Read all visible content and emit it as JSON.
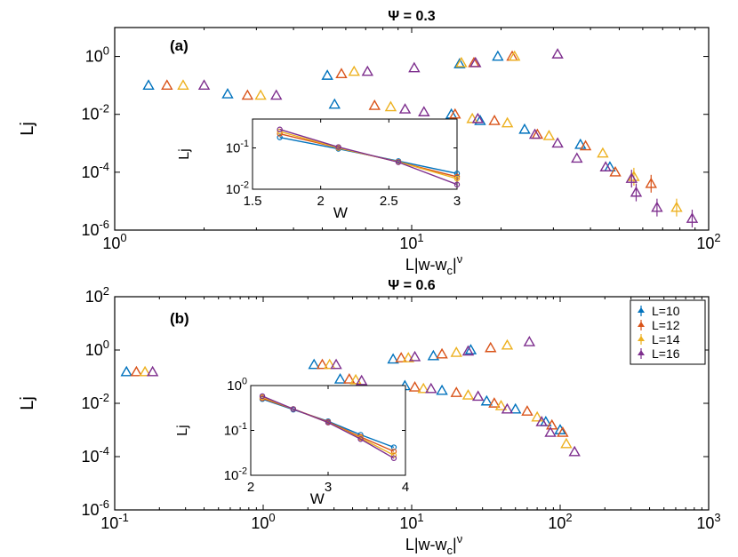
{
  "colors": {
    "L10": "#0072BD",
    "L12": "#D95319",
    "L14": "#EDB120",
    "L16": "#7E2F8E",
    "axis": "#000000",
    "background": "#ffffff"
  },
  "chart_data": [
    {
      "id": "a",
      "type": "scatter",
      "title": "Ψ = 0.3",
      "panel_label": "(a)",
      "xlabel": "L|w-w_c|^ν",
      "xlabel_parts": {
        "main": "L|w-w",
        "sub": "c",
        "tail": "|",
        "sup": "ν"
      },
      "ylabel": "Lj",
      "xscale": "log",
      "yscale": "log",
      "xlim": [
        1,
        100
      ],
      "ylim": [
        1e-06,
        10
      ],
      "xticks": [
        {
          "v": 1,
          "b": "10",
          "e": "0"
        },
        {
          "v": 10,
          "b": "10",
          "e": "1"
        },
        {
          "v": 100,
          "b": "10",
          "e": "2"
        }
      ],
      "yticks": [
        {
          "v": 1e-06,
          "b": "10",
          "e": "-6"
        },
        {
          "v": 0.0001,
          "b": "10",
          "e": "-4"
        },
        {
          "v": 0.01,
          "b": "10",
          "e": "-2"
        },
        {
          "v": 1,
          "b": "10",
          "e": "0"
        }
      ],
      "series": [
        {
          "name": "L=10",
          "color": "#0072BD",
          "points": [
            [
              1.3,
              0.1
            ],
            [
              2.4,
              0.05
            ],
            [
              5.2,
              0.22
            ],
            [
              14.5,
              0.55
            ],
            [
              19.5,
              1.0
            ],
            [
              5.5,
              0.022
            ],
            [
              13.6,
              0.01
            ],
            [
              17.0,
              0.006
            ],
            [
              24.0,
              0.003
            ],
            [
              37.0,
              0.0009
            ],
            [
              46.5,
              0.00015
            ]
          ]
        },
        {
          "name": "L=12",
          "color": "#D95319",
          "points": [
            [
              1.5,
              0.1
            ],
            [
              2.8,
              0.045
            ],
            [
              5.8,
              0.25
            ],
            [
              16.2,
              0.6
            ],
            [
              21.8,
              1.0
            ],
            [
              7.5,
              0.02
            ],
            [
              14.0,
              0.01
            ],
            [
              19.0,
              0.006
            ],
            [
              26.5,
              0.002
            ],
            [
              38.5,
              0.0008
            ],
            [
              48.5,
              0.0001
            ],
            [
              64.0,
              4e-05
            ]
          ]
        },
        {
          "name": "L=14",
          "color": "#EDB120",
          "points": [
            [
              1.7,
              0.1
            ],
            [
              3.1,
              0.045
            ],
            [
              6.4,
              0.3
            ],
            [
              14.7,
              0.6
            ],
            [
              22.2,
              1.0
            ],
            [
              8.5,
              0.018
            ],
            [
              16.0,
              0.007
            ],
            [
              21.0,
              0.005
            ],
            [
              29.0,
              0.0018
            ],
            [
              44.0,
              0.00045
            ],
            [
              56.0,
              7e-05
            ],
            [
              78.0,
              6e-06
            ]
          ]
        },
        {
          "name": "L=16",
          "color": "#7E2F8E",
          "points": [
            [
              2.0,
              0.1
            ],
            [
              3.5,
              0.045
            ],
            [
              7.1,
              0.3
            ],
            [
              10.2,
              0.4
            ],
            [
              16.4,
              0.6
            ],
            [
              31.0,
              1.2
            ],
            [
              9.5,
              0.015
            ],
            [
              11.0,
              0.012
            ],
            [
              16.7,
              0.007
            ],
            [
              26.0,
              0.002
            ],
            [
              31.0,
              0.001
            ],
            [
              36.0,
              0.0003
            ],
            [
              45.0,
              0.00015
            ],
            [
              55.0,
              6e-05
            ],
            [
              57.0,
              2e-05
            ],
            [
              67.0,
              6e-06
            ],
            [
              88.0,
              2.5e-06
            ]
          ]
        }
      ],
      "inset": {
        "xlabel": "W",
        "ylabel": "Lj",
        "xlim": [
          1.5,
          3
        ],
        "ylim": [
          0.01,
          0.5
        ],
        "xticks": [
          {
            "v": 1.5,
            "t": "1.5"
          },
          {
            "v": 2,
            "t": "2"
          },
          {
            "v": 2.5,
            "t": "2.5"
          },
          {
            "v": 3,
            "t": "3"
          }
        ],
        "yticks": [
          {
            "v": 0.01,
            "b": "10",
            "e": "-2"
          },
          {
            "v": 0.1,
            "b": "10",
            "e": "-1"
          }
        ],
        "x": [
          1.7,
          2.13,
          2.57,
          3.0
        ],
        "series": [
          {
            "name": "L=10",
            "color": "#0072BD",
            "values": [
              0.18,
              0.095,
              0.048,
              0.024
            ]
          },
          {
            "name": "L=12",
            "color": "#D95319",
            "values": [
              0.22,
              0.1,
              0.046,
              0.02
            ]
          },
          {
            "name": "L=14",
            "color": "#EDB120",
            "values": [
              0.25,
              0.1,
              0.046,
              0.018
            ]
          },
          {
            "name": "L=16",
            "color": "#7E2F8E",
            "values": [
              0.28,
              0.105,
              0.045,
              0.013
            ]
          }
        ]
      }
    },
    {
      "id": "b",
      "type": "scatter",
      "title": "Ψ = 0.6",
      "panel_label": "(b)",
      "xlabel": "L|w-w_c|^ν",
      "xlabel_parts": {
        "main": "L|w-w",
        "sub": "c",
        "tail": "|",
        "sup": "ν"
      },
      "ylabel": "Lj",
      "xscale": "log",
      "yscale": "log",
      "xlim": [
        0.1,
        1000
      ],
      "ylim": [
        1e-06,
        100
      ],
      "xticks": [
        {
          "v": 0.1,
          "b": "10",
          "e": "-1"
        },
        {
          "v": 1,
          "b": "10",
          "e": "0"
        },
        {
          "v": 10,
          "b": "10",
          "e": "1"
        },
        {
          "v": 100,
          "b": "10",
          "e": "2"
        },
        {
          "v": 1000,
          "b": "10",
          "e": "3"
        }
      ],
      "yticks": [
        {
          "v": 1e-06,
          "b": "10",
          "e": "-6"
        },
        {
          "v": 0.0001,
          "b": "10",
          "e": "-4"
        },
        {
          "v": 0.01,
          "b": "10",
          "e": "-2"
        },
        {
          "v": 1,
          "b": "10",
          "e": "0"
        },
        {
          "v": 100,
          "b": "10",
          "e": "2"
        }
      ],
      "legend": {
        "position": "top-right",
        "entries": [
          "L=10",
          "L=12",
          "L=14",
          "L=16"
        ]
      },
      "series": [
        {
          "name": "L=10",
          "color": "#0072BD",
          "points": [
            [
              0.12,
              0.15
            ],
            [
              2.2,
              0.28
            ],
            [
              3.3,
              0.08
            ],
            [
              7.5,
              0.45
            ],
            [
              14.0,
              0.6
            ],
            [
              25.0,
              1.0
            ],
            [
              9.0,
              0.045
            ],
            [
              16.0,
              0.03
            ],
            [
              32.0,
              0.012
            ],
            [
              50.0,
              0.006
            ],
            [
              80.0,
              0.002
            ],
            [
              100.0,
              0.001
            ]
          ]
        },
        {
          "name": "L=12",
          "color": "#D95319",
          "points": [
            [
              0.14,
              0.15
            ],
            [
              2.5,
              0.28
            ],
            [
              3.8,
              0.08
            ],
            [
              8.5,
              0.5
            ],
            [
              16.0,
              0.7
            ],
            [
              34.0,
              1.2
            ],
            [
              10.5,
              0.04
            ],
            [
              20.0,
              0.025
            ],
            [
              36.0,
              0.01
            ],
            [
              60.0,
              0.005
            ],
            [
              88.0,
              0.0015
            ],
            [
              104.0,
              0.0008
            ]
          ]
        },
        {
          "name": "L=14",
          "color": "#EDB120",
          "points": [
            [
              0.16,
              0.15
            ],
            [
              2.8,
              0.28
            ],
            [
              4.2,
              0.075
            ],
            [
              9.5,
              0.5
            ],
            [
              20.0,
              0.8
            ],
            [
              44.0,
              1.5
            ],
            [
              12.0,
              0.035
            ],
            [
              24.0,
              0.02
            ],
            [
              40.0,
              0.008
            ],
            [
              70.0,
              0.003
            ],
            [
              110.0,
              0.0003
            ]
          ]
        },
        {
          "name": "L=16",
          "color": "#7E2F8E",
          "points": [
            [
              0.18,
              0.15
            ],
            [
              3.1,
              0.28
            ],
            [
              4.6,
              0.07
            ],
            [
              10.5,
              0.55
            ],
            [
              24.0,
              0.9
            ],
            [
              62.0,
              2.0
            ],
            [
              13.5,
              0.035
            ],
            [
              28.0,
              0.018
            ],
            [
              44.0,
              0.006
            ],
            [
              75.0,
              0.002
            ],
            [
              86.0,
              0.0008
            ],
            [
              125.0,
              0.00015
            ]
          ]
        }
      ],
      "inset": {
        "xlabel": "W",
        "ylabel": "Lj",
        "xlim": [
          2,
          4
        ],
        "ylim": [
          0.01,
          1
        ],
        "xticks": [
          {
            "v": 2,
            "t": "2"
          },
          {
            "v": 3,
            "t": "3"
          },
          {
            "v": 4,
            "t": "4"
          }
        ],
        "yticks": [
          {
            "v": 0.01,
            "b": "10",
            "e": "-2"
          },
          {
            "v": 0.1,
            "b": "10",
            "e": "-1"
          },
          {
            "v": 1,
            "b": "10",
            "e": "0"
          }
        ],
        "x": [
          2.15,
          2.55,
          3.0,
          3.42,
          3.85
        ],
        "series": [
          {
            "name": "L=10",
            "color": "#0072BD",
            "values": [
              0.5,
              0.29,
              0.16,
              0.08,
              0.042
            ]
          },
          {
            "name": "L=12",
            "color": "#D95319",
            "values": [
              0.52,
              0.3,
              0.155,
              0.072,
              0.034
            ]
          },
          {
            "name": "L=14",
            "color": "#EDB120",
            "values": [
              0.55,
              0.3,
              0.15,
              0.068,
              0.028
            ]
          },
          {
            "name": "L=16",
            "color": "#7E2F8E",
            "values": [
              0.58,
              0.3,
              0.15,
              0.064,
              0.024
            ]
          }
        ]
      }
    }
  ]
}
